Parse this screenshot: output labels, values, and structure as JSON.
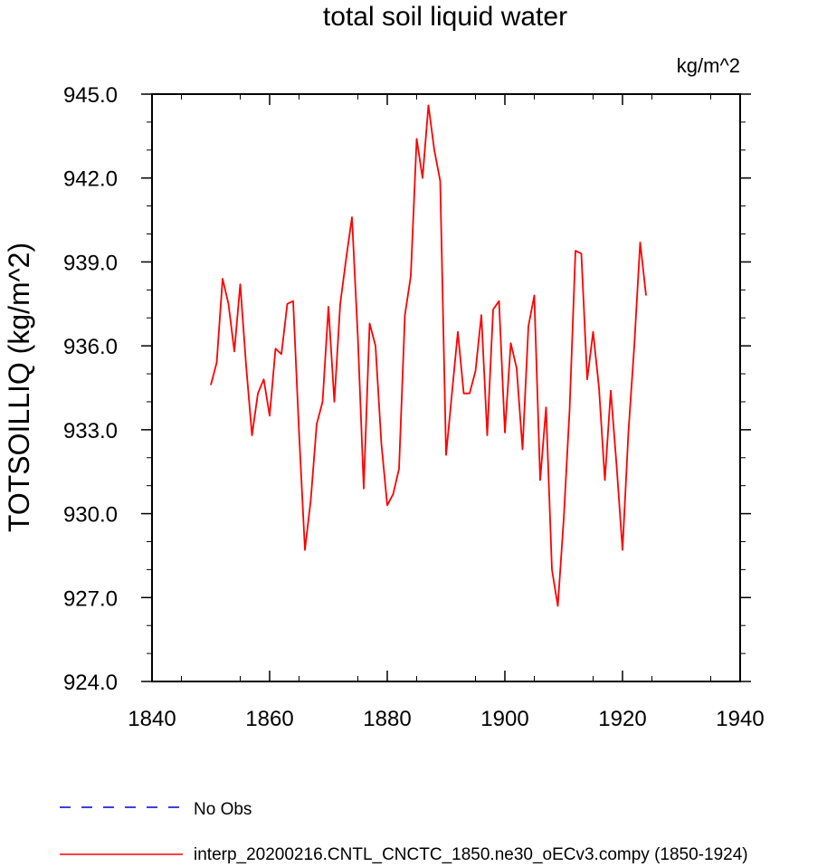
{
  "chart_data": {
    "type": "line",
    "title": "total soil liquid water",
    "units_label": "kg/m^2",
    "xlabel": "",
    "ylabel": "TOTSOILLIQ  (kg/m^2)",
    "xlim": [
      1840,
      1940
    ],
    "ylim": [
      924,
      945
    ],
    "x_ticks": [
      1840,
      1860,
      1880,
      1900,
      1920,
      1940
    ],
    "x_tick_labels": [
      "1840",
      "1860",
      "1880",
      "1900",
      "1920",
      "1940"
    ],
    "y_ticks": [
      924,
      927,
      930,
      933,
      936,
      939,
      942,
      945
    ],
    "y_tick_labels": [
      "924.0",
      "927.0",
      "930.0",
      "933.0",
      "936.0",
      "939.0",
      "942.0",
      "945.0"
    ],
    "grid": false,
    "legend_position": "bottom",
    "series": [
      {
        "name": "No Obs",
        "color": "#0000cc",
        "style": "dashed",
        "x": [],
        "values": []
      },
      {
        "name": "interp_20200216.CNTL_CNCTC_1850.ne30_oECv3.compy (1850-1924)",
        "color": "#ff0000",
        "style": "solid",
        "x": [
          1850,
          1851,
          1852,
          1853,
          1854,
          1855,
          1856,
          1857,
          1858,
          1859,
          1860,
          1861,
          1862,
          1863,
          1864,
          1865,
          1866,
          1867,
          1868,
          1869,
          1870,
          1871,
          1872,
          1873,
          1874,
          1875,
          1876,
          1877,
          1878,
          1879,
          1880,
          1881,
          1882,
          1883,
          1884,
          1885,
          1886,
          1887,
          1888,
          1889,
          1890,
          1891,
          1892,
          1893,
          1894,
          1895,
          1896,
          1897,
          1898,
          1899,
          1900,
          1901,
          1902,
          1903,
          1904,
          1905,
          1906,
          1907,
          1908,
          1909,
          1910,
          1911,
          1912,
          1913,
          1914,
          1915,
          1916,
          1917,
          1918,
          1919,
          1920,
          1921,
          1922,
          1923,
          1924
        ],
        "values": [
          934.6,
          935.4,
          938.4,
          937.5,
          935.8,
          938.2,
          935.3,
          932.8,
          934.3,
          934.8,
          933.5,
          935.9,
          935.7,
          937.5,
          937.6,
          932.9,
          928.7,
          930.5,
          933.2,
          934.0,
          937.4,
          934.0,
          937.5,
          939.1,
          940.6,
          936.3,
          930.9,
          936.8,
          936.0,
          932.5,
          930.3,
          930.7,
          931.6,
          937.1,
          938.5,
          943.4,
          942.0,
          944.6,
          943.0,
          941.9,
          932.1,
          934.3,
          936.5,
          934.3,
          934.3,
          935.1,
          937.1,
          932.8,
          937.3,
          937.6,
          932.9,
          936.1,
          935.2,
          932.3,
          936.7,
          937.8,
          931.2,
          933.8,
          928.0,
          926.7,
          929.8,
          933.7,
          939.4,
          939.3,
          934.8,
          936.5,
          934.5,
          931.2,
          934.4,
          931.7,
          928.7,
          932.9,
          936.0,
          939.7,
          937.8
        ]
      }
    ]
  }
}
